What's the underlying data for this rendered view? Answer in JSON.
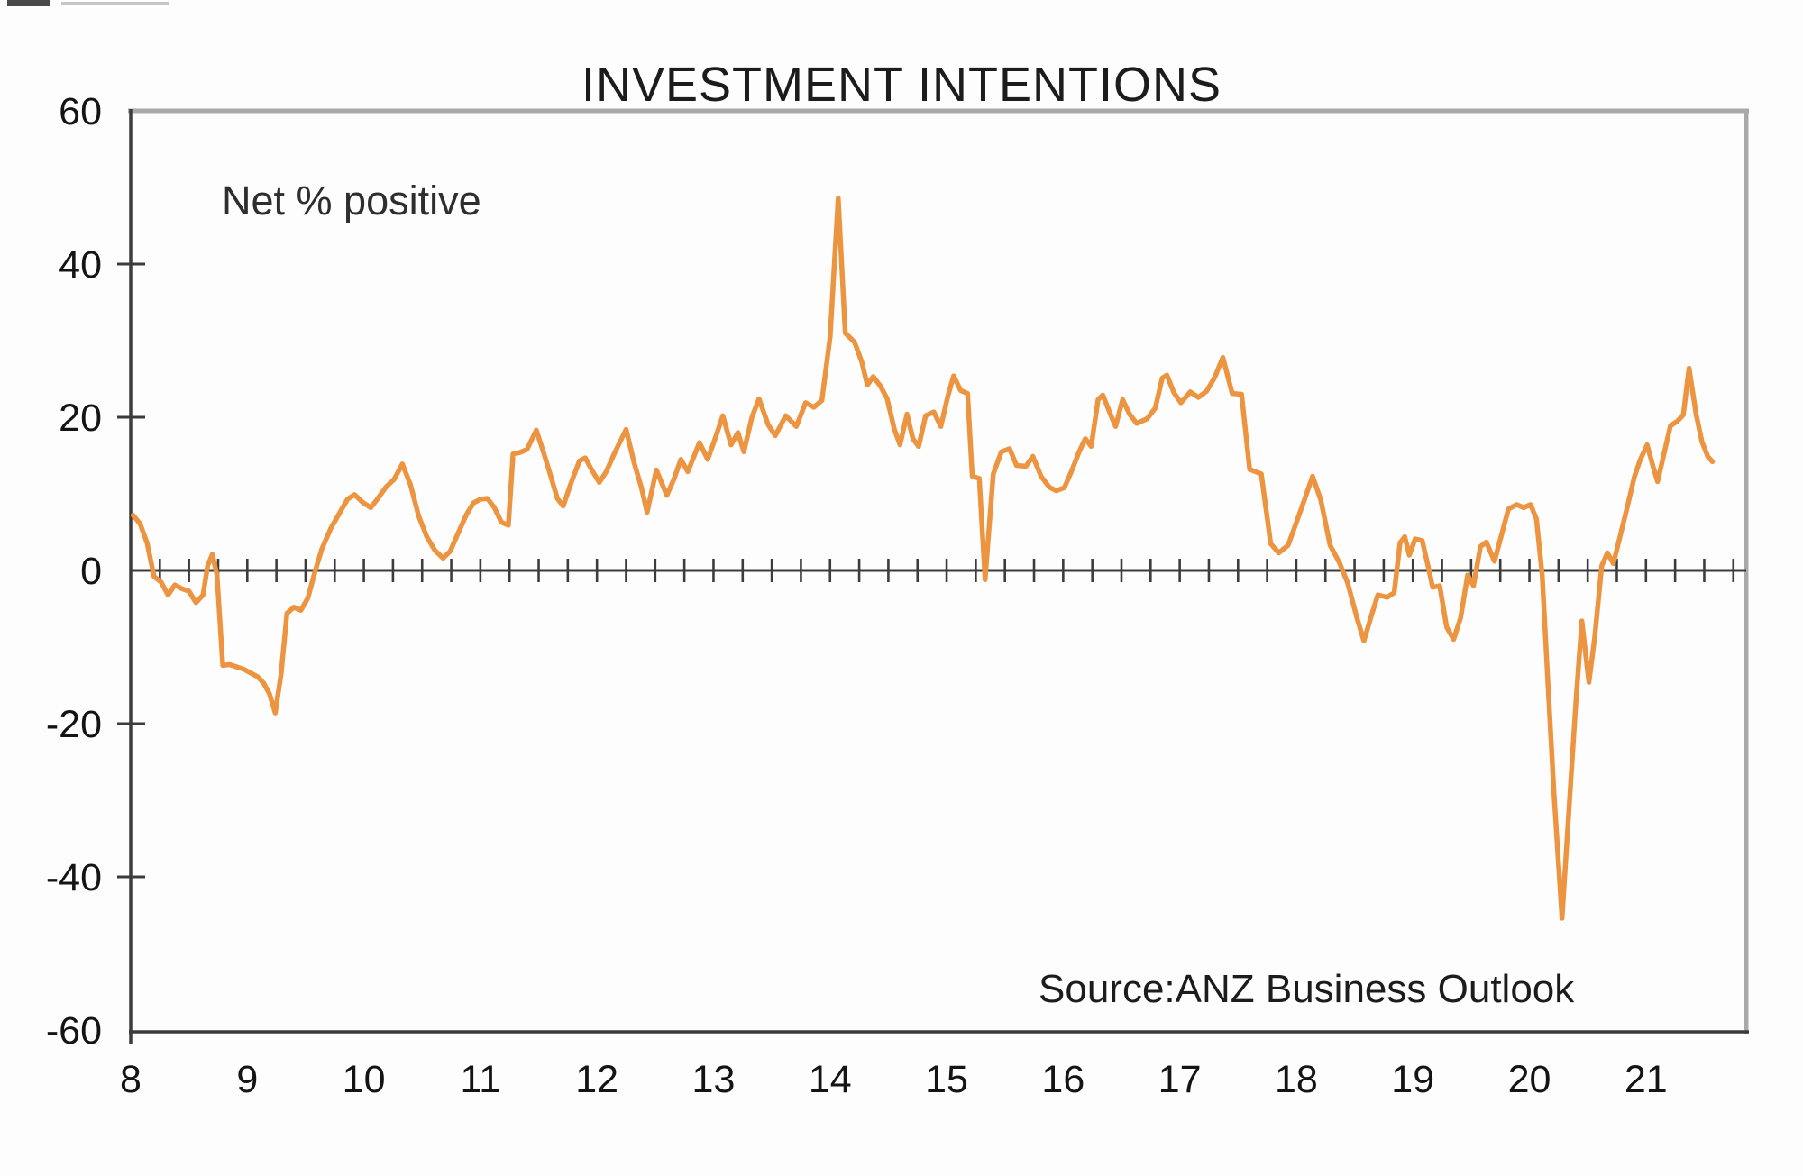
{
  "chart_data": {
    "type": "line",
    "title": "INVESTMENT INTENTIONS",
    "annotation": "Net % positive",
    "source": "Source:ANZ Business Outlook",
    "x_unit": "calendar year, two-digit (8 = 2008)",
    "xlim": [
      8,
      21.86
    ],
    "ylim": [
      -60,
      60
    ],
    "x_tick_labels": [
      8,
      9,
      10,
      11,
      12,
      13,
      14,
      15,
      16,
      17,
      18,
      19,
      20,
      21
    ],
    "y_tick_labels": [
      60,
      40,
      20,
      0,
      -20,
      -40,
      -60
    ],
    "x_minor_tick_interval": 0.25,
    "grid": "zero baseline only, with quarterly tick marks",
    "legend_position": "none",
    "line_color": "#EC9440",
    "axis_color": "#3C3C3C",
    "border_color": "#A9A9A9",
    "series": [
      {
        "name": "Investment intentions (net % positive)",
        "points": [
          [
            8.02,
            7.2
          ],
          [
            8.08,
            6.1
          ],
          [
            8.14,
            3.6
          ],
          [
            8.2,
            -0.8
          ],
          [
            8.26,
            -1.5
          ],
          [
            8.32,
            -3.2
          ],
          [
            8.38,
            -1.9
          ],
          [
            8.44,
            -2.4
          ],
          [
            8.5,
            -2.7
          ],
          [
            8.56,
            -4.2
          ],
          [
            8.62,
            -3.2
          ],
          [
            8.66,
            0.6
          ],
          [
            8.7,
            2.1
          ],
          [
            8.74,
            -0.6
          ],
          [
            8.79,
            -12.4
          ],
          [
            8.85,
            -12.3
          ],
          [
            8.91,
            -12.6
          ],
          [
            8.97,
            -12.9
          ],
          [
            9.03,
            -13.4
          ],
          [
            9.09,
            -13.9
          ],
          [
            9.14,
            -14.7
          ],
          [
            9.19,
            -16.1
          ],
          [
            9.24,
            -18.6
          ],
          [
            9.29,
            -13.5
          ],
          [
            9.34,
            -5.6
          ],
          [
            9.4,
            -4.8
          ],
          [
            9.46,
            -5.2
          ],
          [
            9.52,
            -3.6
          ],
          [
            9.58,
            -0.2
          ],
          [
            9.64,
            2.8
          ],
          [
            9.72,
            5.6
          ],
          [
            9.8,
            7.7
          ],
          [
            9.86,
            9.3
          ],
          [
            9.92,
            9.9
          ],
          [
            9.99,
            8.9
          ],
          [
            10.06,
            8.2
          ],
          [
            10.13,
            9.6
          ],
          [
            10.19,
            10.9
          ],
          [
            10.26,
            11.9
          ],
          [
            10.33,
            13.9
          ],
          [
            10.4,
            11.2
          ],
          [
            10.47,
            7.1
          ],
          [
            10.54,
            4.4
          ],
          [
            10.61,
            2.6
          ],
          [
            10.68,
            1.6
          ],
          [
            10.74,
            2.5
          ],
          [
            10.81,
            4.9
          ],
          [
            10.88,
            7.3
          ],
          [
            10.94,
            8.8
          ],
          [
            11.0,
            9.3
          ],
          [
            11.06,
            9.4
          ],
          [
            11.12,
            8.2
          ],
          [
            11.18,
            6.3
          ],
          [
            11.24,
            5.9
          ],
          [
            11.28,
            15.2
          ],
          [
            11.34,
            15.4
          ],
          [
            11.4,
            15.8
          ],
          [
            11.48,
            18.3
          ],
          [
            11.54,
            15.5
          ],
          [
            11.6,
            12.5
          ],
          [
            11.66,
            9.4
          ],
          [
            11.71,
            8.4
          ],
          [
            11.78,
            11.5
          ],
          [
            11.85,
            14.3
          ],
          [
            11.9,
            14.7
          ],
          [
            11.96,
            13.0
          ],
          [
            12.02,
            11.5
          ],
          [
            12.08,
            12.9
          ],
          [
            12.15,
            15.3
          ],
          [
            12.25,
            18.4
          ],
          [
            12.32,
            14.0
          ],
          [
            12.38,
            10.9
          ],
          [
            12.43,
            7.6
          ],
          [
            12.51,
            13.1
          ],
          [
            12.6,
            9.8
          ],
          [
            12.66,
            11.9
          ],
          [
            12.72,
            14.5
          ],
          [
            12.78,
            12.9
          ],
          [
            12.88,
            16.7
          ],
          [
            12.95,
            14.5
          ],
          [
            13.02,
            17.5
          ],
          [
            13.08,
            20.2
          ],
          [
            13.15,
            16.4
          ],
          [
            13.21,
            18.0
          ],
          [
            13.26,
            15.5
          ],
          [
            13.33,
            20.0
          ],
          [
            13.39,
            22.4
          ],
          [
            13.47,
            19.0
          ],
          [
            13.53,
            17.6
          ],
          [
            13.62,
            20.2
          ],
          [
            13.71,
            18.8
          ],
          [
            13.79,
            21.9
          ],
          [
            13.86,
            21.3
          ],
          [
            13.93,
            22.2
          ],
          [
            14.0,
            30.5
          ],
          [
            14.07,
            48.6
          ],
          [
            14.13,
            31.0
          ],
          [
            14.21,
            29.8
          ],
          [
            14.27,
            27.3
          ],
          [
            14.32,
            24.2
          ],
          [
            14.37,
            25.3
          ],
          [
            14.43,
            24.1
          ],
          [
            14.49,
            22.4
          ],
          [
            14.55,
            18.5
          ],
          [
            14.6,
            16.4
          ],
          [
            14.66,
            20.4
          ],
          [
            14.71,
            17.2
          ],
          [
            14.76,
            16.2
          ],
          [
            14.82,
            20.2
          ],
          [
            14.89,
            20.7
          ],
          [
            14.95,
            18.8
          ],
          [
            15.01,
            22.7
          ],
          [
            15.06,
            25.4
          ],
          [
            15.12,
            23.5
          ],
          [
            15.18,
            23.1
          ],
          [
            15.22,
            12.3
          ],
          [
            15.28,
            12.0
          ],
          [
            15.33,
            -1.2
          ],
          [
            15.4,
            12.6
          ],
          [
            15.47,
            15.5
          ],
          [
            15.54,
            15.9
          ],
          [
            15.6,
            13.7
          ],
          [
            15.68,
            13.6
          ],
          [
            15.74,
            14.9
          ],
          [
            15.81,
            12.3
          ],
          [
            15.88,
            10.9
          ],
          [
            15.94,
            10.4
          ],
          [
            16.01,
            10.8
          ],
          [
            16.07,
            12.9
          ],
          [
            16.14,
            15.6
          ],
          [
            16.19,
            17.2
          ],
          [
            16.24,
            16.2
          ],
          [
            16.3,
            22.3
          ],
          [
            16.34,
            22.9
          ],
          [
            16.41,
            20.2
          ],
          [
            16.45,
            18.8
          ],
          [
            16.51,
            22.3
          ],
          [
            16.57,
            20.4
          ],
          [
            16.63,
            19.2
          ],
          [
            16.72,
            19.8
          ],
          [
            16.79,
            21.2
          ],
          [
            16.85,
            25.1
          ],
          [
            16.89,
            25.5
          ],
          [
            16.95,
            23.2
          ],
          [
            17.01,
            21.9
          ],
          [
            17.09,
            23.3
          ],
          [
            17.16,
            22.6
          ],
          [
            17.23,
            23.4
          ],
          [
            17.3,
            25.2
          ],
          [
            17.37,
            27.8
          ],
          [
            17.45,
            23.1
          ],
          [
            17.53,
            23.0
          ],
          [
            17.6,
            13.2
          ],
          [
            17.7,
            12.6
          ],
          [
            17.78,
            3.5
          ],
          [
            17.85,
            2.3
          ],
          [
            17.93,
            3.3
          ],
          [
            17.99,
            5.8
          ],
          [
            18.06,
            8.8
          ],
          [
            18.14,
            12.3
          ],
          [
            18.21,
            9.2
          ],
          [
            18.29,
            3.3
          ],
          [
            18.37,
            1.0
          ],
          [
            18.44,
            -1.6
          ],
          [
            18.52,
            -6.2
          ],
          [
            18.58,
            -9.2
          ],
          [
            18.65,
            -5.6
          ],
          [
            18.7,
            -3.2
          ],
          [
            18.78,
            -3.5
          ],
          [
            18.84,
            -2.9
          ],
          [
            18.89,
            3.6
          ],
          [
            18.93,
            4.4
          ],
          [
            18.97,
            2.0
          ],
          [
            19.02,
            4.1
          ],
          [
            19.08,
            3.9
          ],
          [
            19.13,
            0.6
          ],
          [
            19.17,
            -2.2
          ],
          [
            19.23,
            -2.0
          ],
          [
            19.29,
            -7.4
          ],
          [
            19.35,
            -9.0
          ],
          [
            19.41,
            -6.2
          ],
          [
            19.47,
            -0.6
          ],
          [
            19.52,
            -2.0
          ],
          [
            19.58,
            3.1
          ],
          [
            19.63,
            3.7
          ],
          [
            19.7,
            1.2
          ],
          [
            19.76,
            4.6
          ],
          [
            19.82,
            8.0
          ],
          [
            19.89,
            8.6
          ],
          [
            19.95,
            8.2
          ],
          [
            20.01,
            8.6
          ],
          [
            20.06,
            6.7
          ],
          [
            20.11,
            -0.6
          ],
          [
            20.16,
            -15.0
          ],
          [
            20.21,
            -29.0
          ],
          [
            20.28,
            -45.4
          ],
          [
            20.34,
            -31.0
          ],
          [
            20.4,
            -17.0
          ],
          [
            20.45,
            -6.6
          ],
          [
            20.51,
            -14.6
          ],
          [
            20.56,
            -8.8
          ],
          [
            20.62,
            0.6
          ],
          [
            20.67,
            2.3
          ],
          [
            20.72,
            0.9
          ],
          [
            20.78,
            4.6
          ],
          [
            20.84,
            8.3
          ],
          [
            20.9,
            12.2
          ],
          [
            20.95,
            14.4
          ],
          [
            21.01,
            16.4
          ],
          [
            21.06,
            13.6
          ],
          [
            21.1,
            11.6
          ],
          [
            21.16,
            15.6
          ],
          [
            21.21,
            18.9
          ],
          [
            21.27,
            19.5
          ],
          [
            21.32,
            20.3
          ],
          [
            21.37,
            26.4
          ],
          [
            21.43,
            20.4
          ],
          [
            21.48,
            16.8
          ],
          [
            21.53,
            14.9
          ],
          [
            21.57,
            14.2
          ]
        ]
      }
    ]
  },
  "artifacts": {
    "note": "small scanner/screenshot smudges along very top-left edge"
  }
}
